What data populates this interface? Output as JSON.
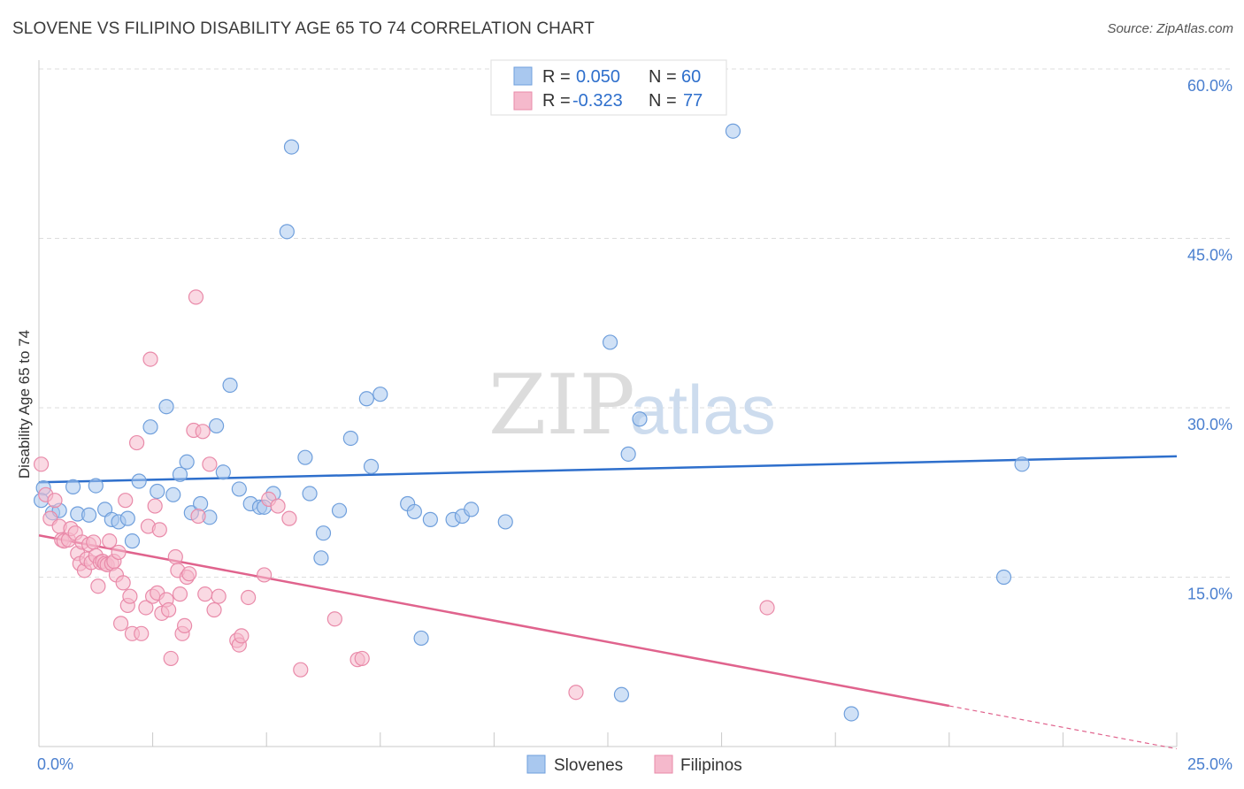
{
  "title": "SLOVENE VS FILIPINO DISABILITY AGE 65 TO 74 CORRELATION CHART",
  "source": "Source: ZipAtlas.com",
  "watermark": {
    "zip": "ZIP",
    "atlas": "atlas"
  },
  "colors": {
    "slovenes_fill": "#a9c8ef",
    "slovenes_stroke": "#6f9fdc",
    "slovenes_line": "#2e6fcc",
    "filipinos_fill": "#f5b9cc",
    "filipinos_stroke": "#e98aa9",
    "filipinos_line": "#e0638d",
    "tick_text": "#4a7fcf",
    "grid": "#dddddd"
  },
  "legend": {
    "rows": [
      {
        "r_label": "R =",
        "r_value": "0.050",
        "n_label": "N =",
        "n_value": "60"
      },
      {
        "r_label": "R =",
        "r_value": "-0.323",
        "n_label": "N =",
        "n_value": "77"
      }
    ]
  },
  "bottom_legend": [
    "Slovenes",
    "Filipinos"
  ],
  "chart_data": {
    "type": "scatter",
    "title": "SLOVENE VS FILIPINO DISABILITY AGE 65 TO 74 CORRELATION CHART",
    "xlabel": "",
    "ylabel": "Disability Age 65 to 74",
    "xlim": [
      0,
      25
    ],
    "ylim": [
      0,
      60
    ],
    "x_tick_labels": [
      "0.0%",
      "25.0%"
    ],
    "y_ticks": [
      15,
      30,
      45,
      60
    ],
    "y_tick_labels": [
      "15.0%",
      "30.0%",
      "45.0%",
      "60.0%"
    ],
    "grid": "horizontal dashed",
    "legend_position": "top-center",
    "series": [
      {
        "name": "Slovenes",
        "r": 0.05,
        "n": 60,
        "trend": {
          "x": [
            0,
            25
          ],
          "y": [
            23.4,
            25.7
          ]
        },
        "points": [
          [
            0.1,
            22.9
          ],
          [
            0.3,
            20.7
          ],
          [
            0.45,
            20.9
          ],
          [
            0.75,
            23.0
          ],
          [
            0.85,
            20.6
          ],
          [
            1.1,
            20.5
          ],
          [
            1.25,
            23.1
          ],
          [
            1.45,
            21.0
          ],
          [
            1.6,
            20.1
          ],
          [
            1.75,
            19.9
          ],
          [
            1.95,
            20.2
          ],
          [
            2.05,
            18.2
          ],
          [
            2.2,
            23.5
          ],
          [
            2.45,
            28.3
          ],
          [
            2.6,
            22.6
          ],
          [
            2.8,
            30.1
          ],
          [
            2.95,
            22.3
          ],
          [
            3.1,
            24.1
          ],
          [
            3.25,
            25.2
          ],
          [
            3.35,
            20.7
          ],
          [
            3.55,
            21.5
          ],
          [
            3.75,
            20.3
          ],
          [
            3.9,
            28.4
          ],
          [
            4.05,
            24.3
          ],
          [
            4.2,
            32.0
          ],
          [
            4.4,
            22.8
          ],
          [
            4.65,
            21.5
          ],
          [
            4.85,
            21.2
          ],
          [
            4.95,
            21.2
          ],
          [
            5.15,
            22.4
          ],
          [
            5.45,
            45.6
          ],
          [
            5.55,
            53.1
          ],
          [
            5.85,
            25.6
          ],
          [
            5.95,
            22.4
          ],
          [
            6.2,
            16.7
          ],
          [
            6.25,
            18.9
          ],
          [
            6.6,
            20.9
          ],
          [
            6.85,
            27.3
          ],
          [
            7.2,
            30.8
          ],
          [
            7.3,
            24.8
          ],
          [
            7.5,
            31.2
          ],
          [
            8.1,
            21.5
          ],
          [
            8.25,
            20.8
          ],
          [
            8.4,
            9.6
          ],
          [
            8.6,
            20.1
          ],
          [
            9.1,
            20.1
          ],
          [
            9.3,
            20.4
          ],
          [
            9.5,
            21.0
          ],
          [
            10.25,
            19.9
          ],
          [
            11.3,
            57.2
          ],
          [
            12.55,
            35.8
          ],
          [
            12.8,
            4.6
          ],
          [
            12.95,
            25.9
          ],
          [
            13.2,
            29.0
          ],
          [
            15.25,
            54.5
          ],
          [
            17.85,
            2.9
          ],
          [
            21.2,
            15.0
          ],
          [
            21.6,
            25.0
          ],
          [
            0.05,
            21.8
          ],
          [
            11.3,
            57.0
          ]
        ]
      },
      {
        "name": "Filipinos",
        "r": -0.323,
        "n": 77,
        "trend": {
          "x": [
            0,
            20
          ],
          "y": [
            18.7,
            3.6
          ],
          "dashed_x": [
            20,
            25
          ],
          "dashed_y": [
            3.6,
            -0.2
          ]
        },
        "points": [
          [
            0.05,
            25.0
          ],
          [
            0.15,
            22.3
          ],
          [
            0.25,
            20.2
          ],
          [
            0.35,
            21.8
          ],
          [
            0.45,
            19.5
          ],
          [
            0.5,
            18.3
          ],
          [
            0.55,
            18.2
          ],
          [
            0.65,
            18.3
          ],
          [
            0.7,
            19.3
          ],
          [
            0.8,
            18.9
          ],
          [
            0.85,
            17.1
          ],
          [
            0.9,
            16.2
          ],
          [
            0.95,
            18.1
          ],
          [
            1.0,
            15.6
          ],
          [
            1.05,
            16.6
          ],
          [
            1.1,
            17.9
          ],
          [
            1.15,
            16.3
          ],
          [
            1.2,
            18.1
          ],
          [
            1.25,
            16.9
          ],
          [
            1.3,
            14.2
          ],
          [
            1.35,
            16.3
          ],
          [
            1.4,
            16.4
          ],
          [
            1.45,
            16.2
          ],
          [
            1.5,
            16.1
          ],
          [
            1.55,
            18.2
          ],
          [
            1.6,
            16.2
          ],
          [
            1.65,
            16.4
          ],
          [
            1.7,
            15.2
          ],
          [
            1.75,
            17.2
          ],
          [
            1.8,
            10.9
          ],
          [
            1.85,
            14.5
          ],
          [
            1.9,
            21.8
          ],
          [
            1.95,
            12.5
          ],
          [
            2.0,
            13.3
          ],
          [
            2.05,
            10.0
          ],
          [
            2.15,
            26.9
          ],
          [
            2.25,
            10.0
          ],
          [
            2.35,
            12.3
          ],
          [
            2.4,
            19.5
          ],
          [
            2.45,
            34.3
          ],
          [
            2.5,
            13.3
          ],
          [
            2.55,
            21.3
          ],
          [
            2.6,
            13.6
          ],
          [
            2.65,
            19.2
          ],
          [
            2.7,
            11.8
          ],
          [
            2.8,
            13.0
          ],
          [
            2.85,
            12.1
          ],
          [
            2.9,
            7.8
          ],
          [
            3.0,
            16.8
          ],
          [
            3.05,
            15.6
          ],
          [
            3.1,
            13.5
          ],
          [
            3.15,
            10.0
          ],
          [
            3.2,
            10.7
          ],
          [
            3.25,
            15.0
          ],
          [
            3.3,
            15.3
          ],
          [
            3.4,
            28.0
          ],
          [
            3.45,
            39.8
          ],
          [
            3.5,
            20.4
          ],
          [
            3.6,
            27.9
          ],
          [
            3.65,
            13.5
          ],
          [
            3.75,
            25.0
          ],
          [
            3.85,
            12.1
          ],
          [
            3.95,
            13.3
          ],
          [
            4.35,
            9.4
          ],
          [
            4.4,
            9.0
          ],
          [
            4.45,
            9.8
          ],
          [
            4.6,
            13.2
          ],
          [
            4.95,
            15.2
          ],
          [
            5.05,
            21.9
          ],
          [
            5.25,
            21.3
          ],
          [
            5.5,
            20.2
          ],
          [
            5.75,
            6.8
          ],
          [
            6.5,
            11.3
          ],
          [
            7.0,
            7.7
          ],
          [
            7.1,
            7.8
          ],
          [
            11.8,
            4.8
          ],
          [
            16.0,
            12.3
          ]
        ]
      }
    ]
  }
}
